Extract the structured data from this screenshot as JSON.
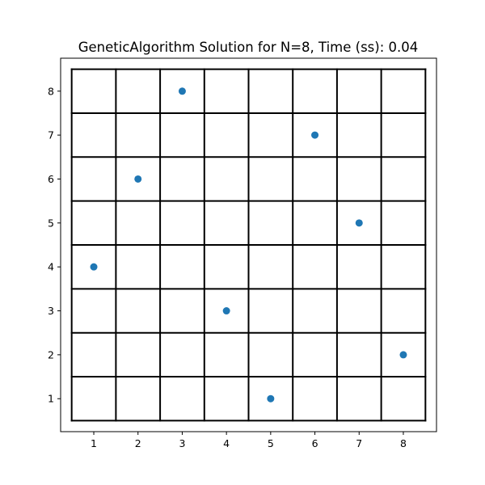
{
  "chart_data": {
    "type": "scatter",
    "title": "GeneticAlgorithm Solution for N=8, Time (ss): 0.04",
    "xlabel": "",
    "ylabel": "",
    "xlim": [
      0.25,
      8.75
    ],
    "ylim": [
      0.25,
      8.75
    ],
    "x_ticks": [
      "1",
      "2",
      "3",
      "4",
      "5",
      "6",
      "7",
      "8"
    ],
    "y_ticks": [
      "1",
      "2",
      "3",
      "4",
      "5",
      "6",
      "7",
      "8"
    ],
    "board_size": 8,
    "grid": true,
    "points": [
      {
        "x": 1,
        "y": 4
      },
      {
        "x": 2,
        "y": 6
      },
      {
        "x": 3,
        "y": 8
      },
      {
        "x": 4,
        "y": 3
      },
      {
        "x": 5,
        "y": 1
      },
      {
        "x": 6,
        "y": 7
      },
      {
        "x": 7,
        "y": 5
      },
      {
        "x": 8,
        "y": 2
      }
    ],
    "point_color": "#1f77b4",
    "grid_color": "#000000"
  }
}
